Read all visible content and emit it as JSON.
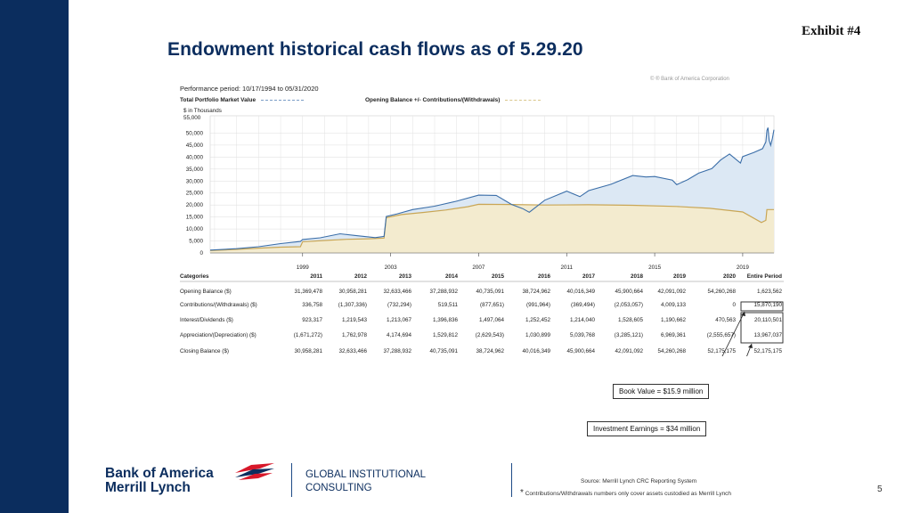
{
  "exhibit": "Exhibit #4",
  "title": "Endowment historical cash flows as of 5.29.20",
  "overlap_text": "© ® Bank of America Corporation",
  "chart_data": {
    "type": "area",
    "performance_period": "Performance period: 10/17/1994 to 05/31/2020",
    "legend": [
      {
        "label": "Total Portfolio Market Value",
        "color": "#7a9cc6"
      },
      {
        "label": "Opening Balance +/- Contributions/(Withdrawals)",
        "color": "#d9c68a"
      }
    ],
    "units_line1": "$ in Thousands",
    "y_top_label": "55,000",
    "y_ticks": [
      "50,000",
      "45,000",
      "40,000",
      "35,000",
      "30,000",
      "25,000",
      "20,000",
      "15,000",
      "10,000",
      "5,000",
      "0"
    ],
    "ylim": [
      0,
      55000
    ],
    "x_ticks": [
      "1999",
      "2003",
      "2007",
      "2011",
      "2015",
      "2019"
    ],
    "x_tick_years": [
      1999,
      2003,
      2007,
      2011,
      2015,
      2019
    ],
    "xlim": [
      1994.8,
      2020.42
    ],
    "market_value": [
      [
        1994.8,
        1200
      ],
      [
        1996.0,
        1800
      ],
      [
        1997.0,
        2600
      ],
      [
        1998.0,
        3900
      ],
      [
        1998.9,
        4800
      ],
      [
        1999.0,
        5600
      ],
      [
        1999.8,
        6300
      ],
      [
        2000.7,
        8000
      ],
      [
        2001.4,
        7300
      ],
      [
        2002.3,
        6400
      ],
      [
        2002.7,
        6900
      ],
      [
        2002.8,
        15200
      ],
      [
        2003.3,
        16300
      ],
      [
        2004.0,
        18100
      ],
      [
        2005.0,
        19500
      ],
      [
        2006.0,
        21600
      ],
      [
        2007.0,
        24100
      ],
      [
        2007.8,
        24000
      ],
      [
        2008.5,
        20200
      ],
      [
        2009.0,
        18500
      ],
      [
        2009.3,
        17000
      ],
      [
        2010.0,
        22000
      ],
      [
        2011.0,
        25800
      ],
      [
        2011.6,
        23500
      ],
      [
        2012.0,
        26000
      ],
      [
        2013.0,
        28600
      ],
      [
        2014.0,
        32300
      ],
      [
        2014.6,
        31700
      ],
      [
        2015.0,
        31900
      ],
      [
        2015.8,
        30400
      ],
      [
        2016.0,
        28500
      ],
      [
        2016.5,
        30600
      ],
      [
        2017.0,
        33300
      ],
      [
        2017.6,
        35200
      ],
      [
        2018.0,
        38800
      ],
      [
        2018.4,
        41300
      ],
      [
        2018.9,
        37500
      ],
      [
        2019.0,
        40200
      ],
      [
        2019.5,
        41900
      ],
      [
        2019.9,
        43500
      ],
      [
        2020.05,
        46300
      ],
      [
        2020.1,
        51100
      ],
      [
        2020.15,
        52300
      ],
      [
        2020.2,
        47000
      ],
      [
        2020.27,
        44900
      ],
      [
        2020.35,
        47900
      ],
      [
        2020.42,
        51400
      ]
    ],
    "book_value": [
      [
        1994.8,
        1000
      ],
      [
        1996.0,
        1500
      ],
      [
        1997.0,
        2000
      ],
      [
        1998.0,
        2400
      ],
      [
        1998.9,
        2600
      ],
      [
        1999.0,
        4700
      ],
      [
        2000.0,
        5200
      ],
      [
        2001.0,
        5700
      ],
      [
        2002.0,
        5900
      ],
      [
        2002.7,
        6200
      ],
      [
        2002.8,
        14700
      ],
      [
        2003.5,
        16000
      ],
      [
        2004.5,
        16900
      ],
      [
        2005.5,
        17900
      ],
      [
        2006.5,
        19300
      ],
      [
        2007.0,
        20300
      ],
      [
        2008.5,
        20200
      ],
      [
        2010.0,
        20000
      ],
      [
        2012.0,
        20100
      ],
      [
        2014.0,
        19900
      ],
      [
        2016.0,
        19400
      ],
      [
        2017.5,
        18600
      ],
      [
        2019.0,
        17100
      ],
      [
        2019.85,
        12700
      ],
      [
        2020.05,
        13600
      ],
      [
        2020.1,
        18100
      ],
      [
        2020.42,
        18100
      ]
    ],
    "table": {
      "header": [
        "Categories",
        "2011",
        "2012",
        "2013",
        "2014",
        "2015",
        "2016",
        "2017",
        "2018",
        "2019",
        "2020",
        "Entire Period"
      ],
      "rows": [
        [
          "Opening Balance ($)",
          "31,369,478",
          "30,958,281",
          "32,633,466",
          "37,288,932",
          "40,735,091",
          "38,724,962",
          "40,016,349",
          "45,900,664",
          "42,091,092",
          "54,260,268",
          "1,623,562"
        ],
        [
          "Contributions/(Withdrawals) ($)",
          "336,758",
          "(1,307,336)",
          "(732,294)",
          "519,511",
          "(877,651)",
          "(991,964)",
          "(369,494)",
          "(2,053,057)",
          "4,009,133",
          "0",
          "15,870,190"
        ],
        [
          "Interest/Dividends ($)",
          "923,317",
          "1,219,543",
          "1,213,067",
          "1,396,836",
          "1,497,064",
          "1,252,452",
          "1,214,040",
          "1,528,605",
          "1,190,662",
          "470,563",
          "20,110,501"
        ],
        [
          "Appreciation/(Depreciation) ($)",
          "(1,671,272)",
          "1,762,978",
          "4,174,694",
          "1,529,812",
          "(2,629,543)",
          "1,030,899",
          "5,039,768",
          "(3,285,121)",
          "6,969,361",
          "(2,555,657)",
          "13,967,037"
        ],
        [
          "Closing Balance ($)",
          "30,958,281",
          "32,633,466",
          "37,288,932",
          "40,735,091",
          "38,724,962",
          "40,016,349",
          "45,900,664",
          "42,091,092",
          "54,260,268",
          "52,175,175",
          "52,175,175"
        ]
      ]
    }
  },
  "callouts": {
    "book_value": "Book Value = $15.9 million",
    "investment_earnings": "Investment Earnings = $34 million"
  },
  "logo": {
    "line1": "Bank of America",
    "line2": "Merrill Lynch"
  },
  "consulting": {
    "line1": "GLOBAL INSTITUTIONAL",
    "line2": "CONSULTING"
  },
  "source": "Source: Merrill Lynch CRC Reporting System",
  "footnote_star": "*",
  "footnote": "Contributions/Withdrawals numbers only cover assets custodied as Merrill Lynch",
  "page_number": "5"
}
